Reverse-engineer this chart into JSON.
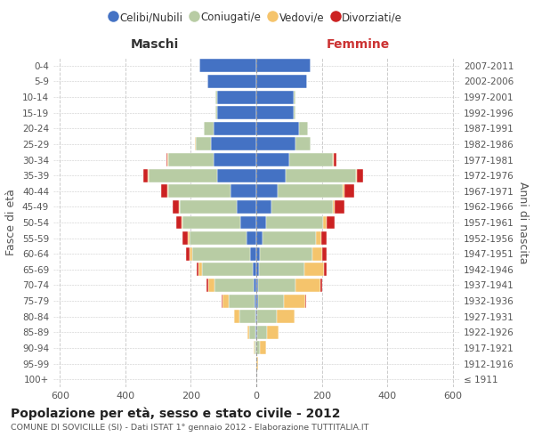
{
  "age_groups": [
    "100+",
    "95-99",
    "90-94",
    "85-89",
    "80-84",
    "75-79",
    "70-74",
    "65-69",
    "60-64",
    "55-59",
    "50-54",
    "45-49",
    "40-44",
    "35-39",
    "30-34",
    "25-29",
    "20-24",
    "15-19",
    "10-14",
    "5-9",
    "0-4"
  ],
  "birth_years": [
    "≤ 1911",
    "1912-1916",
    "1917-1921",
    "1922-1926",
    "1927-1931",
    "1932-1936",
    "1937-1941",
    "1942-1946",
    "1947-1951",
    "1952-1956",
    "1957-1961",
    "1962-1966",
    "1967-1971",
    "1972-1976",
    "1977-1981",
    "1982-1986",
    "1987-1991",
    "1992-1996",
    "1997-2001",
    "2002-2006",
    "2007-2011"
  ],
  "colors": {
    "celibe": "#4472c4",
    "coniugato": "#b8cca4",
    "vedovo": "#f5c46c",
    "divorziato": "#cc2222"
  },
  "males": {
    "celibe": [
      0,
      0,
      1,
      2,
      3,
      5,
      8,
      12,
      20,
      30,
      50,
      60,
      80,
      120,
      130,
      140,
      130,
      120,
      120,
      150,
      175
    ],
    "coniugato": [
      0,
      1,
      5,
      20,
      50,
      80,
      120,
      155,
      175,
      175,
      175,
      175,
      190,
      210,
      140,
      45,
      30,
      5,
      5,
      0,
      0
    ],
    "vedovo": [
      0,
      0,
      3,
      5,
      15,
      18,
      20,
      10,
      8,
      5,
      3,
      2,
      2,
      2,
      2,
      2,
      0,
      0,
      0,
      0,
      0
    ],
    "divorziato": [
      0,
      0,
      0,
      0,
      0,
      2,
      3,
      5,
      12,
      15,
      18,
      18,
      18,
      12,
      3,
      0,
      0,
      0,
      0,
      0,
      0
    ]
  },
  "females": {
    "celibe": [
      0,
      0,
      1,
      3,
      3,
      5,
      5,
      8,
      12,
      18,
      30,
      45,
      65,
      90,
      100,
      120,
      130,
      115,
      115,
      155,
      165
    ],
    "coniugato": [
      0,
      1,
      10,
      30,
      60,
      80,
      115,
      140,
      160,
      165,
      175,
      190,
      200,
      215,
      135,
      45,
      28,
      5,
      5,
      0,
      0
    ],
    "vedovo": [
      0,
      5,
      20,
      35,
      55,
      65,
      75,
      60,
      30,
      15,
      10,
      5,
      5,
      3,
      2,
      2,
      0,
      0,
      0,
      0,
      0
    ],
    "divorziato": [
      0,
      0,
      0,
      0,
      0,
      2,
      5,
      8,
      12,
      18,
      25,
      30,
      28,
      18,
      8,
      0,
      0,
      0,
      0,
      0,
      0
    ]
  },
  "xlim": 620,
  "title": "Popolazione per età, sesso e stato civile - 2012",
  "subtitle": "COMUNE DI SOVICILLE (SI) - Dati ISTAT 1° gennaio 2012 - Elaborazione TUTTITALIA.IT",
  "ylabel": "Fasce di età",
  "ylabel_right": "Anni di nascita",
  "xlabel_left": "Maschi",
  "xlabel_right": "Femmine",
  "legend_labels": [
    "Celibi/Nubili",
    "Coniugati/e",
    "Vedovi/e",
    "Divorziati/e"
  ],
  "background_color": "#ffffff",
  "grid_color": "#cccccc"
}
